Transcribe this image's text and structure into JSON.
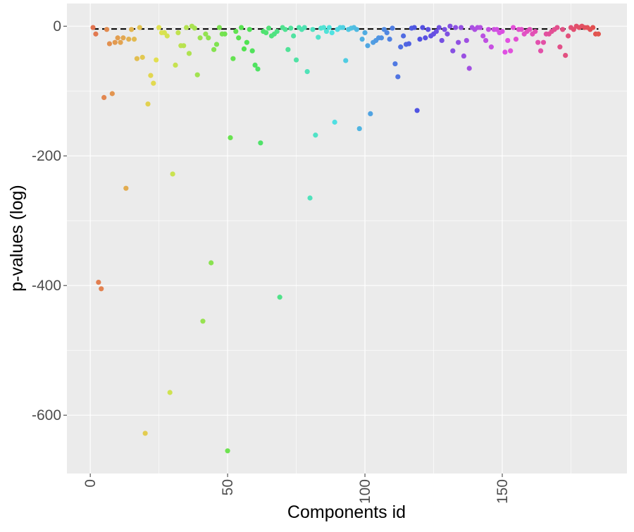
{
  "chart_data": {
    "type": "scatter",
    "x_label": "Components id",
    "y_label": "p-values (log)",
    "xlim": [
      -8.5,
      195.4
    ],
    "ylim": [
      -690,
      35
    ],
    "xticks": [
      0,
      50,
      100,
      150
    ],
    "yticks": [
      0,
      -200,
      -400,
      -600
    ],
    "xminor": [
      25,
      75,
      125,
      175
    ],
    "yminor": [
      -100,
      -300,
      -500
    ],
    "grid": true,
    "point_colors": "hue",
    "reference_line": {
      "y": -4.3,
      "x": [
        1,
        185
      ],
      "color": "#000000"
    },
    "x": [
      1,
      2,
      3,
      4,
      5,
      6,
      7,
      8,
      9,
      10,
      11,
      12,
      13,
      14,
      15,
      16,
      17,
      18,
      19,
      20,
      21,
      22,
      23,
      24,
      25,
      26,
      27,
      28,
      29,
      30,
      31,
      32,
      33,
      34,
      35,
      36,
      37,
      38,
      39,
      40,
      41,
      42,
      43,
      44,
      45,
      46,
      47,
      48,
      49,
      50,
      51,
      52,
      53,
      54,
      55,
      56,
      57,
      58,
      59,
      60,
      61,
      62,
      63,
      64,
      65,
      66,
      67,
      68,
      69,
      70,
      71,
      72,
      73,
      74,
      75,
      76,
      77,
      78,
      79,
      80,
      81,
      82,
      83,
      84,
      85,
      86,
      87,
      88,
      89,
      90,
      91,
      92,
      93,
      94,
      95,
      96,
      97,
      98,
      99,
      100,
      101,
      102,
      103,
      104,
      105,
      106,
      107,
      108,
      109,
      110,
      111,
      112,
      113,
      114,
      115,
      116,
      117,
      118,
      119,
      120,
      121,
      122,
      123,
      124,
      125,
      126,
      127,
      128,
      129,
      130,
      131,
      132,
      133,
      134,
      135,
      136,
      137,
      138,
      139,
      140,
      141,
      142,
      143,
      144,
      145,
      146,
      147,
      148,
      149,
      150,
      151,
      152,
      153,
      154,
      155,
      156,
      157,
      158,
      159,
      160,
      161,
      162,
      163,
      164,
      165,
      166,
      167,
      168,
      169,
      170,
      171,
      172,
      173,
      174,
      175,
      176,
      177,
      178,
      179,
      180,
      181,
      182,
      183,
      184,
      185
    ],
    "values": [
      -2,
      -12,
      -395,
      -405,
      -110,
      -5,
      -27,
      -104,
      -25,
      -18,
      -25,
      -18,
      -250,
      -20,
      -5,
      -20,
      -50,
      -2,
      -48,
      -628,
      -120,
      -76,
      -88,
      -52,
      -2,
      -10,
      -10,
      -15,
      -565,
      -228,
      -60,
      -10,
      -30,
      -30,
      -2,
      -42,
      0,
      -3,
      -75,
      -18,
      -455,
      -12,
      -18,
      -365,
      -36,
      -28,
      -2,
      -12,
      -12,
      -655,
      -172,
      -50,
      -8,
      -18,
      -2,
      -35,
      -25,
      -5,
      -38,
      -60,
      -66,
      -180,
      -8,
      -10,
      -3,
      -15,
      -12,
      -8,
      -418,
      -2,
      -5,
      -36,
      -3,
      -15,
      -52,
      -2,
      -5,
      -2,
      -70,
      -265,
      -5,
      -168,
      -17,
      -3,
      -2,
      -8,
      -2,
      -10,
      -148,
      -5,
      -2,
      -2,
      -53,
      -5,
      -3,
      -2,
      -5,
      -158,
      -20,
      -10,
      -30,
      -135,
      -25,
      -22,
      -18,
      -18,
      -5,
      -10,
      -20,
      -3,
      -58,
      -78,
      -32,
      -15,
      -28,
      -27,
      -3,
      -2,
      -130,
      -20,
      -2,
      -18,
      -5,
      -15,
      -12,
      -8,
      -2,
      -22,
      -5,
      -12,
      0,
      -38,
      -2,
      -25,
      -2,
      -46,
      -22,
      -65,
      -2,
      -5,
      -2,
      -2,
      -15,
      -22,
      -5,
      -32,
      -5,
      -5,
      -10,
      -8,
      -40,
      -22,
      -38,
      -2,
      -20,
      -5,
      -5,
      -12,
      -8,
      -5,
      -12,
      -8,
      -25,
      -38,
      -25,
      -12,
      -12,
      -8,
      -5,
      -2,
      -32,
      -5,
      -45,
      -15,
      -2,
      -5,
      0,
      -2,
      0,
      -2,
      -2,
      -5,
      -2,
      -12,
      -12
    ]
  }
}
